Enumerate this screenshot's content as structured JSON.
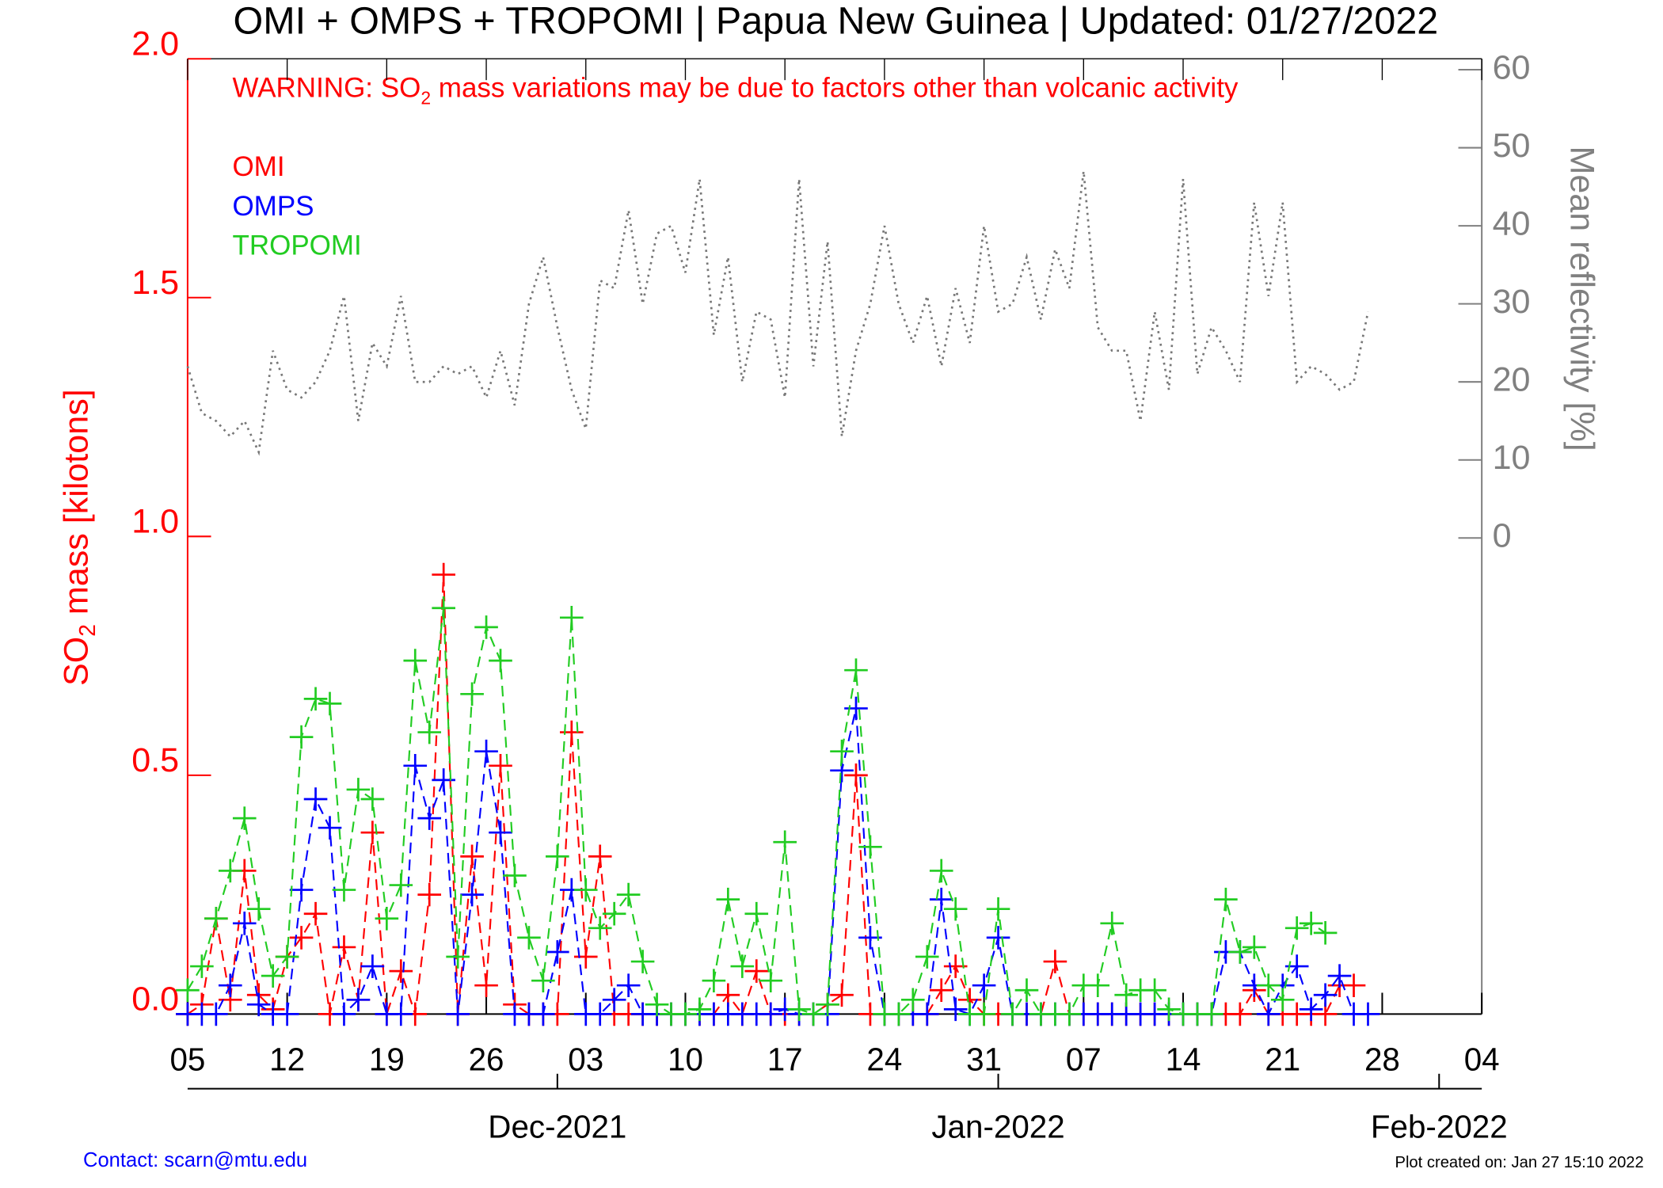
{
  "chart_data": {
    "type": "line",
    "title": "OMI + OMPS + TROPOMI | Papua New Guinea | Updated: 01/27/2022",
    "annotation": [
      "WARNING: SO",
      "2",
      " mass variations may be due to factors other than volcanic activity"
    ],
    "y_label": [
      "SO",
      "2",
      " mass [kilotons]"
    ],
    "y2_label": "Mean reflectivity [%]",
    "contact": "Contact: scarn@mtu.edu",
    "created": "Plot created on: Jan 27 15:10 2022",
    "x": [
      "2021-11-05",
      "2021-11-06",
      "2021-11-07",
      "2021-11-08",
      "2021-11-09",
      "2021-11-10",
      "2021-11-11",
      "2021-11-12",
      "2021-11-13",
      "2021-11-14",
      "2021-11-15",
      "2021-11-16",
      "2021-11-17",
      "2021-11-18",
      "2021-11-19",
      "2021-11-20",
      "2021-11-21",
      "2021-11-22",
      "2021-11-23",
      "2021-11-24",
      "2021-11-25",
      "2021-11-26",
      "2021-11-27",
      "2021-11-28",
      "2021-11-29",
      "2021-11-30",
      "2021-12-01",
      "2021-12-02",
      "2021-12-03",
      "2021-12-04",
      "2021-12-05",
      "2021-12-06",
      "2021-12-07",
      "2021-12-08",
      "2021-12-09",
      "2021-12-10",
      "2021-12-11",
      "2021-12-12",
      "2021-12-13",
      "2021-12-14",
      "2021-12-15",
      "2021-12-16",
      "2021-12-17",
      "2021-12-18",
      "2021-12-19",
      "2021-12-20",
      "2021-12-21",
      "2021-12-22",
      "2021-12-23",
      "2021-12-24",
      "2021-12-25",
      "2021-12-26",
      "2021-12-27",
      "2021-12-28",
      "2021-12-29",
      "2021-12-30",
      "2021-12-31",
      "2022-01-01",
      "2022-01-02",
      "2022-01-03",
      "2022-01-04",
      "2022-01-05",
      "2022-01-06",
      "2022-01-07",
      "2022-01-08",
      "2022-01-09",
      "2022-01-10",
      "2022-01-11",
      "2022-01-12",
      "2022-01-13",
      "2022-01-14",
      "2022-01-15",
      "2022-01-16",
      "2022-01-17",
      "2022-01-18",
      "2022-01-19",
      "2022-01-20",
      "2022-01-21",
      "2022-01-22",
      "2022-01-23",
      "2022-01-24",
      "2022-01-25",
      "2022-01-26",
      "2022-01-27"
    ],
    "xlim": [
      "2021-11-05",
      "2022-02-04"
    ],
    "xticks": [
      {
        "value": "2021-11-05",
        "label": "05"
      },
      {
        "value": "2021-11-12",
        "label": "12"
      },
      {
        "value": "2021-11-19",
        "label": "19"
      },
      {
        "value": "2021-11-26",
        "label": "26"
      },
      {
        "value": "2021-12-03",
        "label": "03"
      },
      {
        "value": "2021-12-10",
        "label": "10"
      },
      {
        "value": "2021-12-17",
        "label": "17"
      },
      {
        "value": "2021-12-24",
        "label": "24"
      },
      {
        "value": "2021-12-31",
        "label": "31"
      },
      {
        "value": "2022-01-07",
        "label": "07"
      },
      {
        "value": "2022-01-14",
        "label": "14"
      },
      {
        "value": "2022-01-21",
        "label": "21"
      },
      {
        "value": "2022-01-28",
        "label": "28"
      },
      {
        "value": "2022-02-04",
        "label": "04"
      }
    ],
    "month_ticks": [
      {
        "value": "2021-12-01",
        "label": "Dec-2021"
      },
      {
        "value": "2022-01-01",
        "label": "Jan-2022"
      },
      {
        "value": "2022-02-01",
        "label": "Feb-2022"
      }
    ],
    "ylim": [
      0,
      2
    ],
    "yticks": [
      {
        "value": 0,
        "label": "0.0"
      },
      {
        "value": 0.5,
        "label": "0.5"
      },
      {
        "value": 1,
        "label": "1.0"
      },
      {
        "value": 1.5,
        "label": "1.5"
      },
      {
        "value": 2,
        "label": "2.0"
      }
    ],
    "y2lim": [
      -61,
      61.4
    ],
    "y2ticks": [
      0,
      10,
      20,
      30,
      40,
      50,
      60
    ],
    "series": [
      {
        "name": "OMI",
        "color": "#ff0000",
        "values": [
          0,
          0.02,
          0.2,
          0.03,
          0.3,
          0.04,
          0.01,
          0.12,
          0.16,
          0.21,
          0,
          0.14,
          0.03,
          0.38,
          0,
          0.09,
          0,
          0.25,
          0.92,
          0,
          0.33,
          0.06,
          0.52,
          0.02,
          0,
          0,
          0,
          0.59,
          0.12,
          0.33,
          0,
          0,
          0,
          0,
          0,
          0,
          0,
          0,
          0.04,
          0,
          0.09,
          0,
          0,
          0,
          0,
          0.02,
          0.04,
          0.5,
          0,
          0,
          0,
          0,
          0,
          0.05,
          0.1,
          0.03,
          0,
          0,
          0,
          0,
          0,
          0.11,
          0,
          0,
          0,
          0,
          0,
          0,
          0,
          0,
          0,
          0,
          0,
          0,
          0,
          0.05,
          0,
          0,
          0,
          0,
          0,
          0.06,
          0.06,
          null
        ]
      },
      {
        "name": "OMPS",
        "color": "#0000ff",
        "values": [
          0,
          0,
          0,
          0.06,
          0.19,
          0.02,
          0,
          0,
          0.26,
          0.45,
          0.39,
          0,
          0.03,
          0.1,
          0,
          0,
          0.52,
          0.41,
          0.49,
          0,
          0.25,
          0.55,
          0.38,
          0,
          0,
          0,
          0.13,
          0.26,
          0,
          0,
          0.03,
          0.06,
          0,
          0,
          0,
          0,
          0,
          0,
          0,
          0,
          0,
          0,
          0.01,
          0,
          0,
          0,
          0.51,
          0.64,
          0.16,
          0,
          0,
          0,
          0,
          0.24,
          0.01,
          0,
          0.06,
          0.16,
          0,
          0,
          0,
          0,
          0,
          0,
          0,
          0,
          0,
          0,
          0,
          0,
          0,
          0,
          0,
          0.13,
          0.13,
          0.06,
          0,
          0.06,
          0.1,
          0.01,
          0.04,
          0.08,
          0,
          0
        ]
      },
      {
        "name": "TROPOMI",
        "color": "#22cc22",
        "values": [
          0.05,
          0.1,
          0.2,
          0.3,
          0.41,
          0.22,
          0.08,
          0.12,
          0.58,
          0.66,
          0.65,
          0.26,
          0.47,
          0.45,
          0.2,
          0.27,
          0.74,
          0.59,
          0.85,
          0.12,
          0.67,
          0.81,
          0.74,
          0.29,
          0.16,
          0.07,
          0.33,
          0.83,
          0.26,
          0.18,
          0.21,
          0.25,
          0.11,
          0.02,
          0,
          0,
          0.01,
          0.07,
          0.24,
          0.1,
          0.21,
          0.07,
          0.36,
          0.01,
          0,
          0.02,
          0.55,
          0.72,
          0.35,
          0,
          0,
          0.03,
          0.12,
          0.3,
          0.22,
          0,
          0,
          0.22,
          0,
          0.05,
          0,
          0,
          0,
          0.06,
          0.06,
          0.19,
          0.04,
          0.05,
          0.05,
          0.01,
          0,
          0,
          0,
          0.24,
          0.13,
          0.14,
          0.06,
          0.03,
          0.18,
          0.19,
          0.17,
          null,
          null,
          null
        ]
      },
      {
        "name": "Mean reflectivity",
        "color": "#777777",
        "axis": "y2",
        "values": [
          22,
          16,
          15,
          13,
          15,
          11,
          24,
          19,
          18,
          20,
          24,
          31,
          15,
          25,
          22,
          31,
          20,
          20,
          22,
          21,
          22,
          18,
          24,
          17,
          30,
          36,
          27,
          19,
          14,
          33,
          32,
          42,
          30,
          39,
          40,
          34,
          46,
          26,
          36,
          20,
          29,
          28,
          18,
          46,
          22,
          38,
          13,
          24,
          30,
          40,
          30,
          25,
          31,
          22,
          32,
          25,
          40,
          29,
          30,
          36,
          28,
          37,
          32,
          47,
          27,
          24,
          24,
          15,
          29,
          19,
          46,
          21,
          27,
          24,
          20,
          43,
          31,
          43,
          20,
          22,
          21,
          19,
          20,
          29
        ]
      }
    ]
  }
}
